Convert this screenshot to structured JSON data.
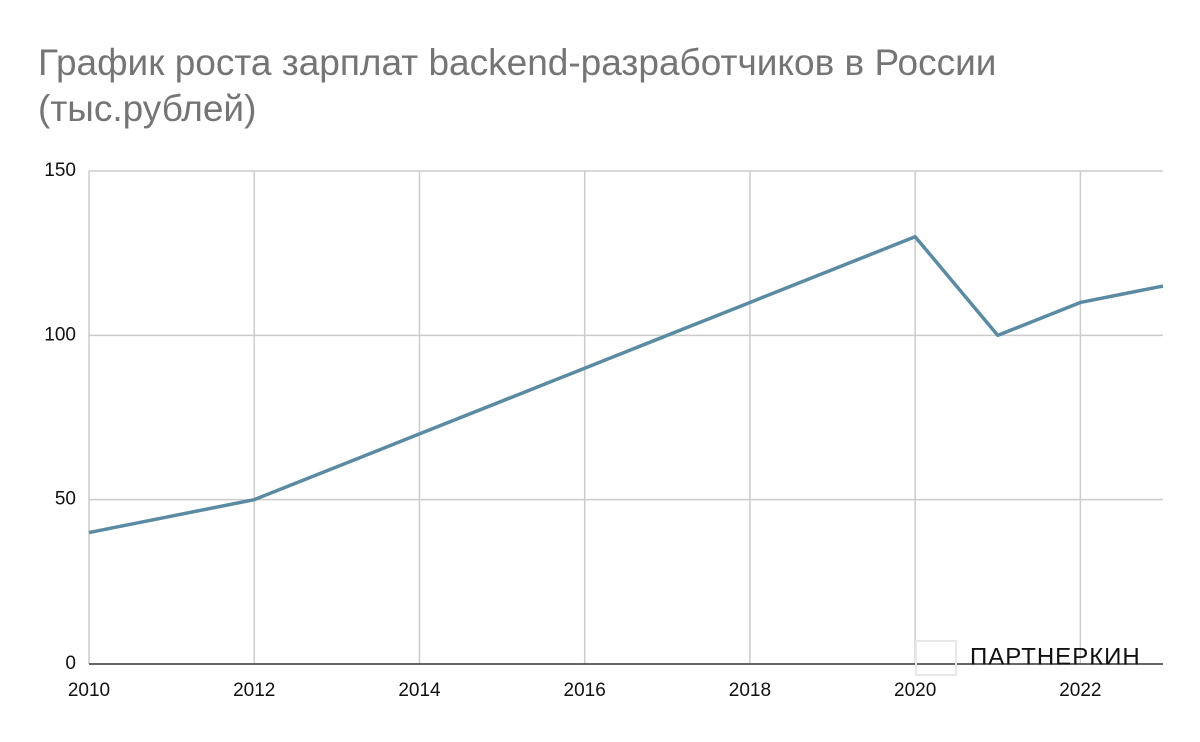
{
  "chart_data": {
    "type": "line",
    "title": "График роста зарплат backend-разработчиков в России (тыс.рублей)",
    "watermark": "ПАРТНЕРКИН",
    "x": [
      2010,
      2012,
      2014,
      2016,
      2018,
      2020,
      2021,
      2022,
      2023
    ],
    "series": [
      {
        "color": "#5a8ba3",
        "values": [
          40,
          50,
          70,
          90,
          110,
          130,
          100,
          110,
          115
        ]
      }
    ],
    "xlim": [
      2010,
      2023
    ],
    "xticks": [
      2010,
      2012,
      2014,
      2016,
      2018,
      2020,
      2022
    ],
    "ylim": [
      0,
      150
    ],
    "yticks": [
      0,
      50,
      100,
      150
    ],
    "grid": true
  }
}
